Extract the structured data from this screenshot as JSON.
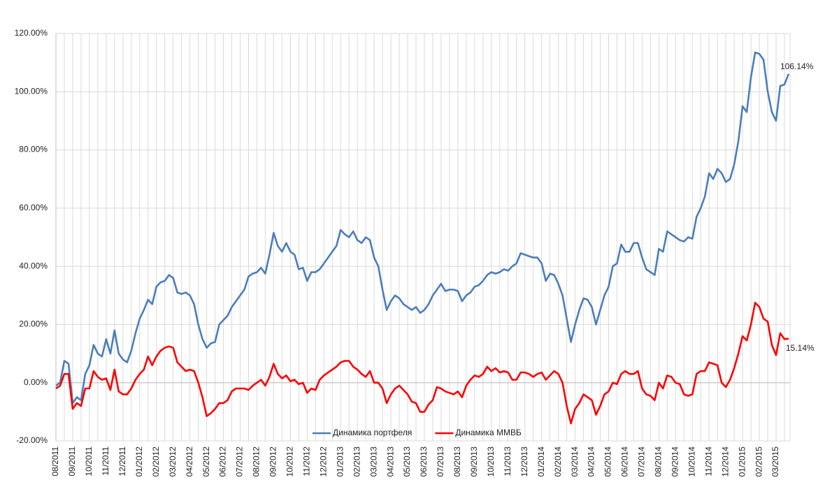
{
  "chart_data": {
    "type": "line",
    "categories": [
      "08/2011",
      null,
      null,
      null,
      "09/2011",
      null,
      null,
      null,
      "10/2011",
      null,
      null,
      null,
      "11/2011",
      null,
      null,
      null,
      "12/2011",
      null,
      null,
      null,
      "01/2012",
      null,
      null,
      null,
      "02/2012",
      null,
      null,
      null,
      "03/2012",
      null,
      null,
      null,
      "04/2012",
      null,
      null,
      null,
      "05/2012",
      null,
      null,
      null,
      "06/2012",
      null,
      null,
      null,
      "07/2012",
      null,
      null,
      null,
      "08/2012",
      null,
      null,
      null,
      "09/2012",
      null,
      null,
      null,
      "10/2012",
      null,
      null,
      null,
      "11/2012",
      null,
      null,
      null,
      "12/2012",
      null,
      null,
      null,
      "01/2013",
      null,
      null,
      null,
      "02/2013",
      null,
      null,
      null,
      "03/2013",
      null,
      null,
      null,
      "04/2013",
      null,
      null,
      null,
      "05/2013",
      null,
      null,
      null,
      "06/2013",
      null,
      null,
      null,
      "07/2013",
      null,
      null,
      null,
      "08/2013",
      null,
      null,
      null,
      "09/2013",
      null,
      null,
      null,
      "10/2013",
      null,
      null,
      null,
      "11/2013",
      null,
      null,
      null,
      "12/2013",
      null,
      null,
      null,
      "01/2014",
      null,
      null,
      null,
      "02/2014",
      null,
      null,
      null,
      "03/2014",
      null,
      null,
      null,
      "04/2014",
      null,
      null,
      null,
      "05/2014",
      null,
      null,
      null,
      "06/2014",
      null,
      null,
      null,
      "07/2014",
      null,
      null,
      null,
      "08/2014",
      null,
      null,
      null,
      "09/2014",
      null,
      null,
      null,
      "10/2014",
      null,
      null,
      null,
      "11/2014",
      null,
      null,
      null,
      "12/2014",
      null,
      null,
      null,
      "01/2015",
      null,
      null,
      null,
      "02/2015",
      null,
      null,
      null,
      "03/2015",
      null,
      null,
      null
    ],
    "series": [
      {
        "name": "Динамика портфеля",
        "color": "#4a7ebb",
        "values": [
          -1,
          0,
          7.5,
          6.5,
          -7,
          -5,
          -6,
          3,
          6,
          13,
          10,
          9,
          15,
          10,
          18,
          10,
          8,
          7,
          11,
          17,
          22,
          25,
          28.5,
          27,
          33,
          34.5,
          35,
          37,
          36,
          31,
          30.5,
          31,
          30,
          27,
          20,
          15,
          12,
          13.5,
          14,
          20,
          21.5,
          23,
          26,
          28,
          30,
          32,
          36.5,
          37.5,
          38,
          39.5,
          37.5,
          44,
          51.5,
          47,
          45,
          48,
          45,
          44,
          39,
          39.5,
          35,
          38,
          38,
          39,
          41,
          43,
          45,
          47,
          52.5,
          51,
          50,
          52,
          49,
          48,
          50,
          49,
          43,
          40,
          32,
          25,
          28,
          30,
          29,
          27,
          26,
          25,
          26,
          24,
          25,
          27,
          30,
          32,
          34,
          31.5,
          32,
          32,
          31.5,
          28,
          30,
          31,
          33,
          33.5,
          35,
          37,
          38,
          37.5,
          38,
          39,
          38.5,
          40,
          41,
          44.5,
          44,
          43.5,
          43,
          43,
          41,
          35,
          37.5,
          37,
          34,
          30,
          22,
          14,
          20,
          25,
          29,
          28.5,
          26,
          20,
          25,
          30,
          33,
          40,
          41,
          47.5,
          45,
          45,
          48,
          48,
          43,
          39,
          38,
          37,
          46,
          45,
          52,
          51,
          50,
          49,
          48.5,
          50,
          49.5,
          57,
          60,
          64,
          72,
          70,
          73.5,
          72,
          69,
          70,
          75,
          83,
          95,
          93,
          105,
          113.5,
          113,
          111,
          100,
          93,
          90,
          102,
          102.5,
          106.14
        ]
      },
      {
        "name": "Динамика ММВБ",
        "color": "#ff0000",
        "values": [
          -2,
          -1,
          3,
          3,
          -9,
          -7,
          -8,
          -2,
          -2,
          4,
          2,
          1,
          1.5,
          -2.5,
          4.5,
          -3,
          -4,
          -4,
          -2,
          1,
          3,
          4.5,
          9,
          6,
          9,
          11,
          12,
          12.5,
          12,
          7,
          5.5,
          4,
          4.5,
          4,
          0,
          -5,
          -11.5,
          -10.5,
          -9,
          -7,
          -7,
          -6,
          -3,
          -2,
          -2,
          -2,
          -2.5,
          -1,
          0,
          1,
          -1,
          2,
          6.5,
          3,
          1.5,
          2.5,
          0.5,
          1,
          -0.5,
          0,
          -3.5,
          -2,
          -2.5,
          1,
          2.5,
          3.5,
          4.5,
          5.5,
          7,
          7.5,
          7.5,
          5.5,
          4.5,
          3,
          2,
          4,
          0,
          0,
          -2,
          -7,
          -4,
          -2,
          -1,
          -2.5,
          -4,
          -6.5,
          -7,
          -10,
          -10,
          -7.5,
          -6,
          -1.5,
          -2,
          -3,
          -3.5,
          -4,
          -3,
          -5,
          -1,
          1,
          2.5,
          2,
          3,
          5.5,
          4,
          5,
          3.5,
          4,
          3.5,
          1,
          1,
          3.5,
          3.5,
          3,
          2,
          3,
          3.5,
          1,
          2.5,
          4,
          3,
          0,
          -8,
          -14,
          -9,
          -7,
          -4,
          -5,
          -6,
          -11,
          -8,
          -4,
          -3,
          0,
          -0.5,
          3,
          4,
          3,
          3,
          4,
          -2,
          -4,
          -4.5,
          -6,
          0,
          -2,
          2.5,
          2,
          0,
          -0.5,
          -4,
          -4.5,
          -4,
          3,
          4,
          4,
          7,
          6.5,
          6,
          0,
          -1.5,
          1,
          5,
          10,
          16,
          14.5,
          20,
          27.5,
          26,
          22,
          21,
          13,
          9.5,
          17,
          15,
          15.14
        ]
      }
    ],
    "annotations": [
      "106.14%",
      "15.14%"
    ],
    "ylim": [
      -20,
      120
    ],
    "yticks": [
      {
        "value": -20,
        "label": "-20.00%"
      },
      {
        "value": 0,
        "label": "0.00%"
      },
      {
        "value": 20,
        "label": "20.00%"
      },
      {
        "value": 40,
        "label": "40.00%"
      },
      {
        "value": 60,
        "label": "60.00%"
      },
      {
        "value": 80,
        "label": "80.00%"
      },
      {
        "value": 100,
        "label": "100.00%"
      },
      {
        "value": 120,
        "label": "120.00%"
      }
    ],
    "grid": true,
    "legend": "bottom"
  }
}
